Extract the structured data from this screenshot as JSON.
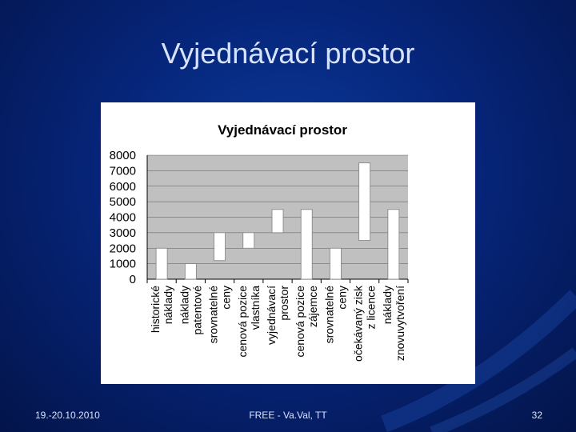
{
  "slide": {
    "title": "Vyjednávací prostor",
    "footer_date": "19.-20.10.2010",
    "footer_center": "FREE - Va.Val, TT",
    "page_number": "32"
  },
  "colors": {
    "background": "#06257a",
    "plot_area": "#c0c0c0",
    "bar_fill": "#ffffff",
    "bar_stroke": "#808080"
  },
  "chart_data": {
    "type": "bar",
    "subtype": "floating",
    "title": "Vyjednávací prostor",
    "xlabel": "",
    "ylabel": "",
    "ylim": [
      0,
      8000
    ],
    "yticks": [
      0,
      1000,
      2000,
      3000,
      4000,
      5000,
      6000,
      7000,
      8000
    ],
    "grid": true,
    "categories": [
      "historické náklady",
      "náklady patentové",
      "srovnatelné ceny",
      "cenová pozice vlastníka",
      "vyjednávací prostor",
      "cenová pozice zájemce",
      "srovnatelné ceny",
      "očekávaný zisk z licence",
      "náklady znovuvytvoření"
    ],
    "category_lines": [
      [
        "historické",
        "náklady"
      ],
      [
        "náklady",
        "patentové"
      ],
      [
        "srovnatelné",
        "ceny"
      ],
      [
        "cenová pozice",
        "vlastníka"
      ],
      [
        "vyjednávací",
        "prostor"
      ],
      [
        "cenová pozice",
        "zájemce"
      ],
      [
        "srovnatelné",
        "ceny"
      ],
      [
        "očekávaný zisk",
        "z licence"
      ],
      [
        "náklady",
        "znovuvytvoření"
      ]
    ],
    "series": [
      {
        "ranges": [
          [
            0,
            2000
          ],
          [
            0,
            1000
          ],
          [
            1200,
            3000
          ],
          [
            2000,
            3000
          ],
          [
            3000,
            4500
          ],
          [
            0,
            4500
          ],
          [
            0,
            2000
          ],
          [
            2500,
            7500
          ],
          [
            0,
            4500
          ]
        ]
      }
    ]
  }
}
